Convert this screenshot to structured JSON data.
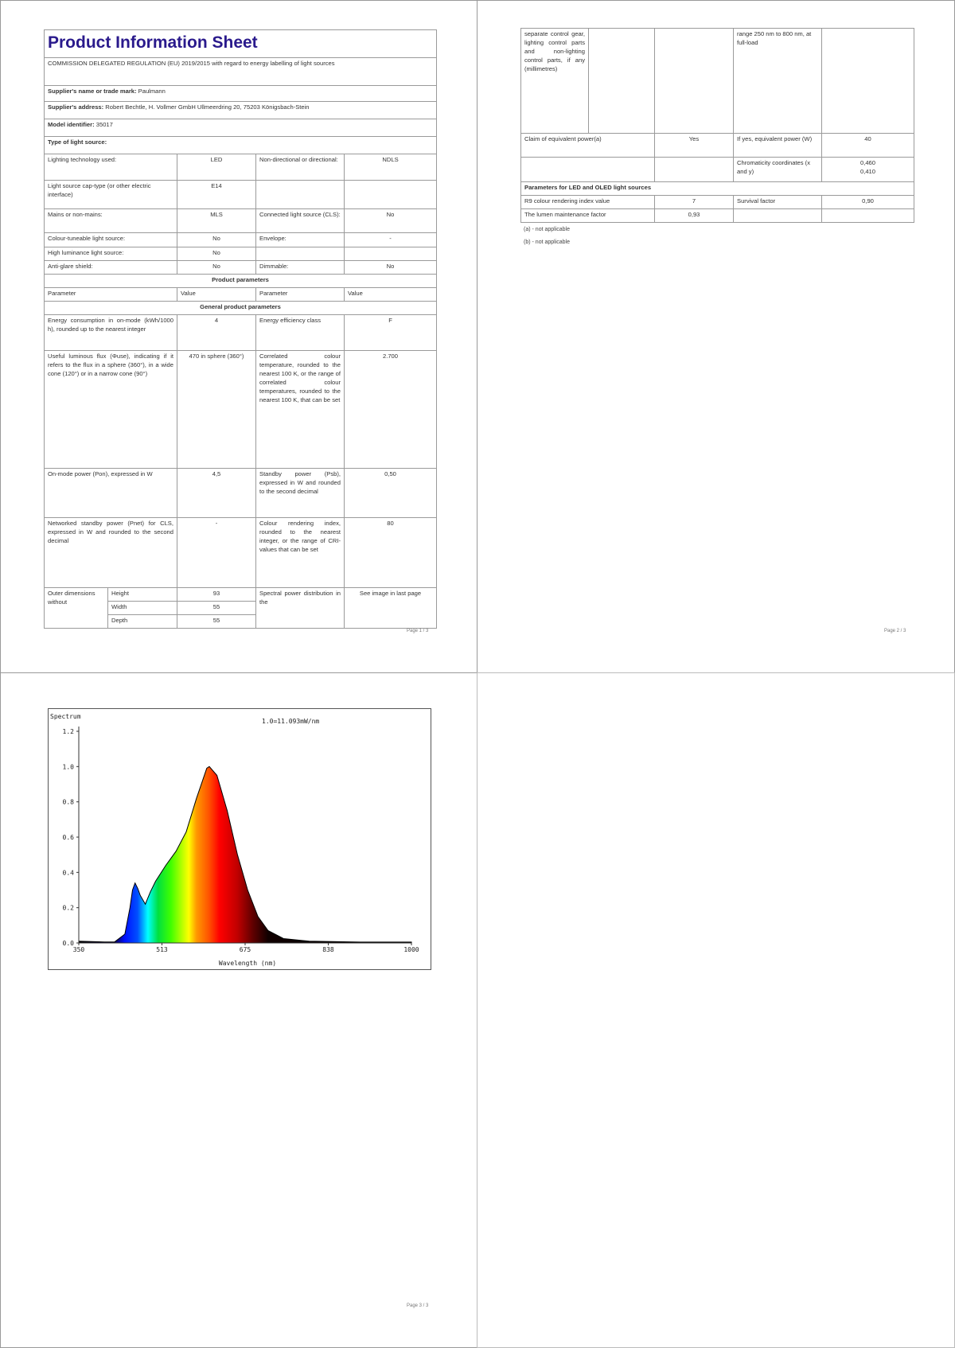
{
  "page1": {
    "title": "Product Information Sheet",
    "regulation": "COMMISSION DELEGATED REGULATION (EU) 2019/2015 with regard to energy labelling of light sources",
    "supplier_name_label": "Supplier's name or trade mark:",
    "supplier_name": "Paulmann",
    "supplier_address_label": "Supplier's address:",
    "supplier_address": "Robert Bechtle, H. Vollmer GmbH Ullmeerdring 20, 75203 Königsbach-Stein",
    "model_label": "Model identifier:",
    "model": "35017",
    "type_label": "Type of light source:",
    "type_rows": [
      [
        "Lighting technology used:",
        "LED",
        "Non-directional or directional:",
        "NDLS"
      ],
      [
        "Light source cap-type (or other electric interface)",
        "E14",
        "",
        ""
      ],
      [
        "Mains or non-mains:",
        "MLS",
        "Connected light source (CLS):",
        "No"
      ],
      [
        "Colour-tuneable light source:",
        "No",
        "Envelope:",
        "-"
      ],
      [
        "High luminance light source:",
        "No",
        "",
        ""
      ],
      [
        "Anti-glare shield:",
        "No",
        "Dimmable:",
        "No"
      ]
    ],
    "product_parameters": "Product parameters",
    "param_header": [
      "Parameter",
      "Value",
      "Parameter",
      "Value"
    ],
    "general_parameters": "General product parameters",
    "param_rows": [
      [
        "Energy consumption in on-mode (kWh/1000 h), rounded up to the nearest integer",
        "4",
        "Energy efficiency class",
        "F"
      ],
      [
        "Useful luminous flux (Φuse), indicating if it refers to the flux in a sphere (360°), in a wide cone (120°) or in a narrow cone (90°)",
        "470 in sphere (360°)",
        "Correlated colour temperature, rounded to the nearest 100 K, or the range of correlated colour temperatures, rounded to the nearest 100 K, that can be set",
        "2.700"
      ],
      [
        "On-mode power (Pon), expressed in W",
        "4,5",
        "Standby power (Psb), expressed in W and rounded to the second decimal",
        "0,50"
      ],
      [
        "Networked standby power (Pnet) for CLS, expressed in W and rounded to the second decimal",
        "-",
        "Colour rendering index, rounded to the nearest integer, or the range of CRI-values that can be set",
        "80"
      ]
    ],
    "dims_label": "Outer dimensions without",
    "dims": [
      [
        "Height",
        "93"
      ],
      [
        "Width",
        "55"
      ],
      [
        "Depth",
        "55"
      ]
    ],
    "spd_label": "Spectral power distribution in the",
    "spd_value": "See image in last page",
    "page_number": "Page 1 / 3"
  },
  "page2": {
    "dims_cont": "separate control gear, lighting control parts and non-lighting control parts, if any (millimetres)",
    "spd_cont": "range 250 nm to 800 nm, at full-load",
    "claim_label": "Claim of equivalent power(a)",
    "claim_value": "Yes",
    "equiv_label": "If yes, equivalent power (W)",
    "equiv_value": "40",
    "chroma_label": "Chromaticity coordinates (x and y)",
    "chroma_x": "0,460",
    "chroma_y": "0,410",
    "led_header": "Parameters for LED and OLED light sources",
    "r9_label": "R9 colour rendering index value",
    "r9_value": "7",
    "survival_label": "Survival factor",
    "survival_value": "0,90",
    "lumen_label": "The lumen maintenance factor",
    "lumen_value": "0,93",
    "footnotes": [
      [
        "(a) -",
        "not applicable"
      ],
      [
        "(b) -",
        "not applicable"
      ]
    ],
    "page_number": "Page 2 / 3"
  },
  "page3": {
    "page_number": "Page 3 / 3"
  },
  "chart_data": {
    "type": "area",
    "title": "Spectrum",
    "annotation": "1.0=11.093mW/nm",
    "xlabel": "Wavelength (nm)",
    "ylabel": "",
    "xlim": [
      350,
      1000
    ],
    "ylim": [
      0,
      1.2
    ],
    "xticks": [
      "350",
      "513",
      "675",
      "838",
      "1000"
    ],
    "yticks": [
      "0.0",
      "0.2",
      "0.4",
      "0.6",
      "0.8",
      "1.0",
      "1.2"
    ],
    "grid": false,
    "x": [
      350,
      400,
      420,
      440,
      450,
      455,
      460,
      465,
      470,
      480,
      490,
      500,
      520,
      540,
      560,
      580,
      600,
      605,
      620,
      640,
      660,
      680,
      700,
      720,
      750,
      800,
      900,
      1000
    ],
    "y": [
      0.01,
      0.006,
      0.006,
      0.05,
      0.2,
      0.3,
      0.34,
      0.31,
      0.27,
      0.22,
      0.29,
      0.35,
      0.44,
      0.52,
      0.63,
      0.82,
      0.99,
      1.0,
      0.95,
      0.75,
      0.5,
      0.3,
      0.15,
      0.07,
      0.025,
      0.01,
      0.005,
      0.005
    ]
  }
}
